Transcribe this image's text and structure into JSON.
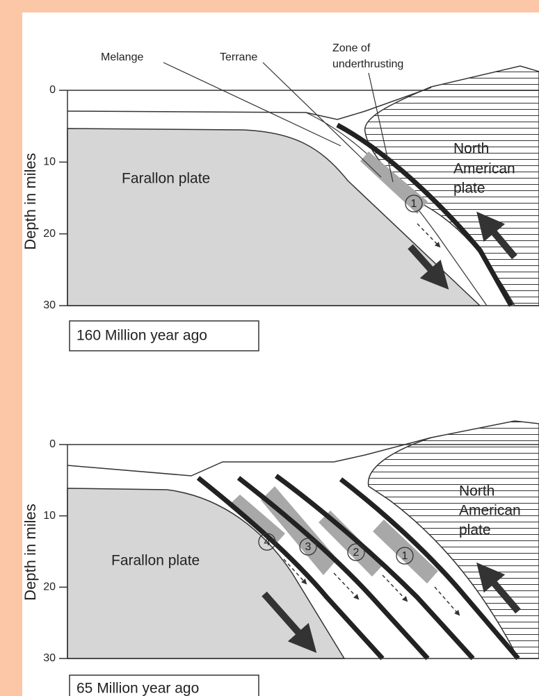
{
  "panels": [
    {
      "axis_label": "Depth in miles",
      "yticks": [
        0,
        10,
        20,
        30
      ],
      "caption": "160 Million year ago",
      "labels": {
        "melange": "Melange",
        "terrane": "Terrane",
        "zone": [
          "Zone of",
          "underthrusting"
        ],
        "farallon": "Farallon plate",
        "north_american": [
          "North",
          "American",
          "plate"
        ]
      },
      "markers": [
        "1"
      ]
    },
    {
      "axis_label": "Depth in miles",
      "yticks": [
        0,
        10,
        20,
        30
      ],
      "caption": "65 Million year ago",
      "labels": {
        "farallon": "Farallon plate",
        "north_american": [
          "North",
          "American",
          "plate"
        ]
      },
      "markers": [
        "4",
        "3",
        "2",
        "1"
      ]
    }
  ]
}
